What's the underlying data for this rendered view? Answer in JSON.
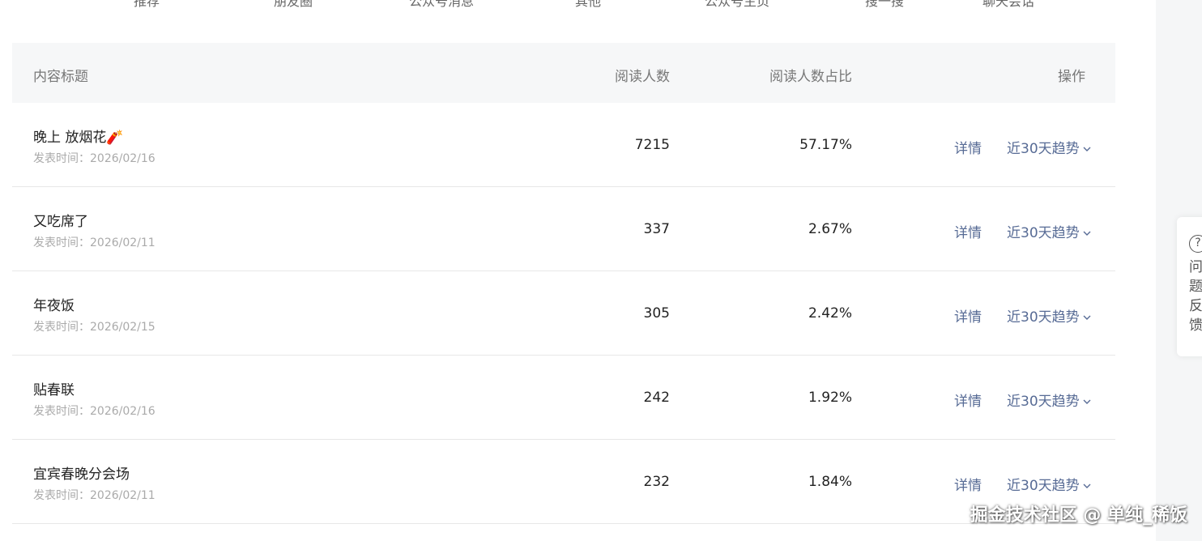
{
  "top_tabs": [
    "推荐",
    "朋友圈",
    "公众号消息",
    "其他",
    "公众号主页",
    "搜一搜",
    "聊天会话"
  ],
  "table": {
    "headers": {
      "title": "内容标题",
      "reads": "阅读人数",
      "ratio": "阅读人数占比",
      "action": "操作"
    },
    "rows": [
      {
        "title": "晚上 放烟花🧨",
        "date": "发表时间：2026/02/16",
        "reads": "7215",
        "ratio": "57.17%"
      },
      {
        "title": "又吃席了",
        "date": "发表时间：2026/02/11",
        "reads": "337",
        "ratio": "2.67%"
      },
      {
        "title": "年夜饭",
        "date": "发表时间：2026/02/15",
        "reads": "305",
        "ratio": "2.42%"
      },
      {
        "title": "贴春联",
        "date": "发表时间：2026/02/16",
        "reads": "242",
        "ratio": "1.92%"
      },
      {
        "title": "宜宾春晚分会场",
        "date": "发表时间：2026/02/11",
        "reads": "232",
        "ratio": "1.84%"
      }
    ],
    "detail_label": "详情",
    "trend_label": "近30天趋势"
  },
  "feedback": {
    "icon": "question-circle-icon",
    "label": "问题反馈"
  },
  "watermark": "掘金技术社区 @ 单纯_稀饭",
  "colors": {
    "link": "#576b95",
    "header_bg": "#f6f7f8"
  }
}
